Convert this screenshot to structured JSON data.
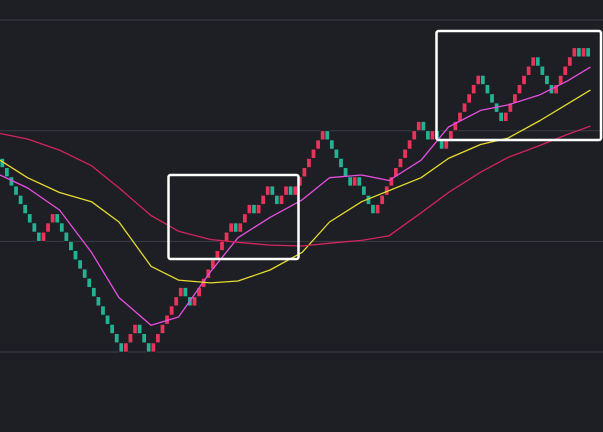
{
  "chart_data": {
    "type": "renko",
    "open": 21,
    "values": [
      20,
      19,
      18,
      17,
      16,
      15,
      14,
      13,
      12,
      13,
      14,
      15,
      14,
      13,
      12,
      11,
      10,
      9,
      8,
      7,
      6,
      5,
      4,
      3,
      2,
      1,
      0,
      1,
      2,
      3,
      2,
      1,
      0,
      1,
      2,
      3,
      4,
      5,
      6,
      7,
      6,
      5,
      6,
      7,
      8,
      9,
      10,
      11,
      12,
      13,
      14,
      13,
      14,
      15,
      16,
      15,
      16,
      17,
      18,
      17,
      16,
      17,
      18,
      17,
      18,
      19,
      20,
      21,
      22,
      23,
      24,
      23,
      22,
      21,
      20,
      19,
      18,
      19,
      18,
      17,
      16,
      15,
      16,
      17,
      18,
      19,
      20,
      21,
      22,
      23,
      24,
      25,
      24,
      23,
      24,
      23,
      22,
      23,
      24,
      25,
      26,
      27,
      28,
      29,
      30,
      29,
      28,
      27,
      26,
      25,
      26,
      27,
      28,
      29,
      30,
      31,
      32,
      31,
      30,
      29,
      28,
      29,
      30,
      31,
      32,
      33,
      32,
      33,
      32
    ],
    "up_color": "#e8335a",
    "down_color": "#22b393",
    "xlim": [
      0,
      130
    ],
    "ylim": [
      -8.67,
      38.17
    ],
    "yticks": [
      0,
      12,
      24,
      36
    ],
    "grid": true,
    "lines": [
      {
        "color": "#e64fe0",
        "x": [
          0,
          6,
          13,
          20,
          26,
          33,
          39,
          46,
          52,
          59,
          66,
          72,
          79,
          85,
          92,
          98,
          105,
          111,
          118,
          124,
          129
        ],
        "values": [
          19.2,
          17.8,
          15.4,
          10.8,
          5.9,
          2.9,
          3.8,
          8.7,
          12.4,
          14.6,
          16.5,
          18.9,
          19.2,
          18.6,
          20.8,
          24.4,
          26.2,
          26.8,
          27.9,
          29.4,
          30.9
        ]
      },
      {
        "color": "#e6dc2e",
        "x": [
          0,
          6,
          13,
          20,
          26,
          33,
          39,
          46,
          52,
          59,
          66,
          72,
          79,
          85,
          92,
          98,
          105,
          111,
          118,
          124,
          129
        ],
        "values": [
          20.8,
          18.9,
          17.3,
          16.3,
          14.1,
          9.3,
          7.8,
          7.5,
          7.7,
          8.9,
          10.8,
          14.1,
          16.3,
          17.5,
          18.9,
          21.0,
          22.5,
          23.2,
          25.1,
          26.9,
          28.4
        ]
      },
      {
        "color": "#d3245c",
        "x": [
          0,
          6,
          13,
          20,
          26,
          33,
          39,
          46,
          52,
          59,
          66,
          72,
          79,
          85,
          92,
          98,
          105,
          111,
          118,
          124,
          129
        ],
        "values": [
          23.7,
          23.1,
          21.9,
          20.2,
          17.8,
          14.8,
          13.1,
          12.2,
          11.9,
          11.6,
          11.5,
          11.8,
          12.1,
          12.6,
          15.1,
          17.3,
          19.5,
          21.1,
          22.4,
          23.6,
          24.5
        ]
      }
    ]
  }
}
